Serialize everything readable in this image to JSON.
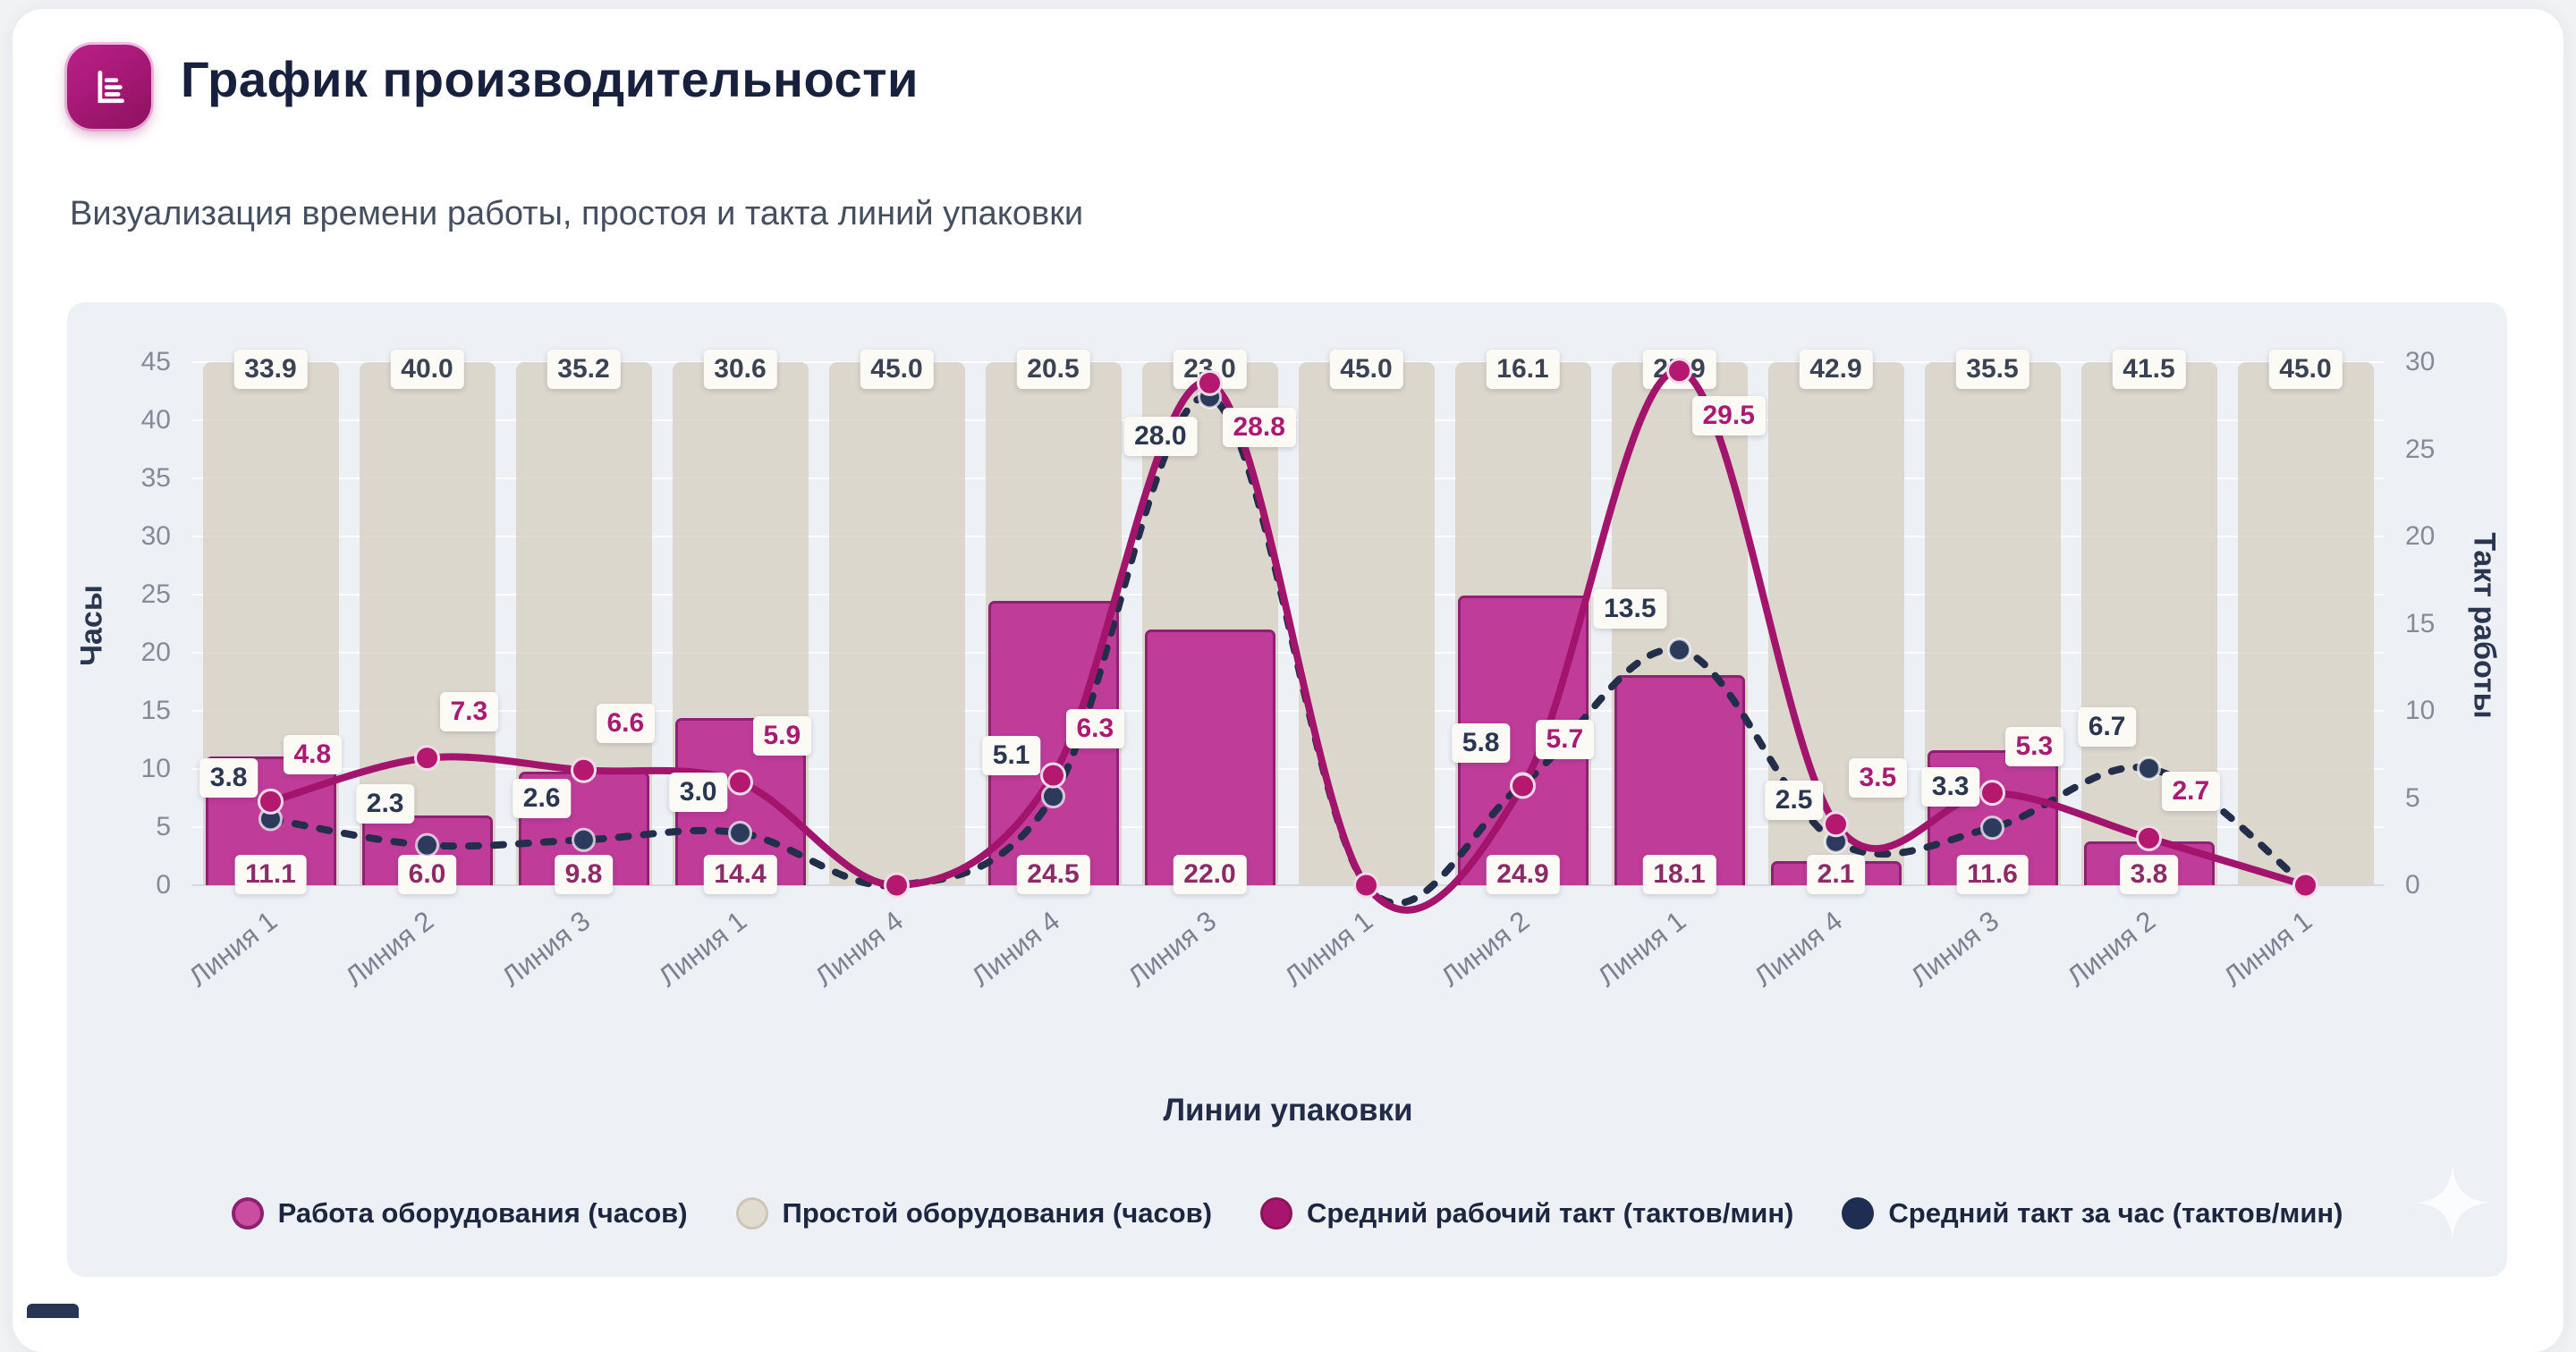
{
  "header": {
    "title": "График производительности",
    "subtitle": "Визуализация времени работы, простоя и такта линий упаковки",
    "icon": "bar-chart-icon"
  },
  "chart_data": {
    "type": "bar+line combo",
    "categories": [
      "Линия 1",
      "Линия 2",
      "Линия 3",
      "Линия 1",
      "Линия 4",
      "Линия 4",
      "Линия 3",
      "Линия 1",
      "Линия 2",
      "Линия 1",
      "Линия 4",
      "Линия 3",
      "Линия 2",
      "Линия 1"
    ],
    "series": [
      {
        "name": "Работа оборудования (часов)",
        "type": "bar",
        "axis": "left",
        "values": [
          11.1,
          6.0,
          9.8,
          14.4,
          null,
          24.5,
          22.0,
          null,
          24.9,
          18.1,
          2.1,
          11.6,
          3.8,
          null
        ]
      },
      {
        "name": "Простой оборудования (часов)",
        "type": "bar",
        "axis": "left",
        "render": "full-height-background",
        "values": [
          33.9,
          40.0,
          35.2,
          30.6,
          45.0,
          20.5,
          23.0,
          45.0,
          16.1,
          25.9,
          42.9,
          35.5,
          41.5,
          45.0
        ]
      },
      {
        "name": "Средний рабочий такт (тактов/мин)",
        "type": "line",
        "axis": "right",
        "values": [
          4.8,
          7.3,
          6.6,
          5.9,
          null,
          6.3,
          28.8,
          null,
          5.7,
          29.5,
          3.5,
          5.3,
          2.7,
          null
        ]
      },
      {
        "name": "Средний такт за час (тактов/мин)",
        "type": "line",
        "style": "dashed",
        "axis": "right",
        "values": [
          3.8,
          2.3,
          2.6,
          3.0,
          null,
          5.1,
          28.0,
          null,
          5.8,
          13.5,
          2.5,
          3.3,
          6.7,
          null
        ]
      }
    ],
    "axes": {
      "left": {
        "title": "Часы",
        "min": 0,
        "max": 45,
        "ticks": [
          0,
          5,
          10,
          15,
          20,
          25,
          30,
          35,
          40,
          45
        ]
      },
      "right": {
        "title": "Такт работы",
        "min": 0,
        "max": 30,
        "ticks": [
          0,
          5,
          10,
          15,
          20,
          25,
          30
        ]
      },
      "x": {
        "title": "Линии упаковки"
      }
    },
    "grid": true,
    "legend_position": "bottom"
  },
  "colors": {
    "panel_bg": "#edf0f5",
    "work_bar": "#bf3c99",
    "work_bar_border": "#8f2173",
    "idle_bar": "#d9d3c7",
    "line_avg_takt": "#a3156d",
    "line_hour_takt": "#222e4a",
    "title_text": "#17203d",
    "icon_accent": "#a3176c",
    "label_box_bg": "#fbfaf5"
  }
}
